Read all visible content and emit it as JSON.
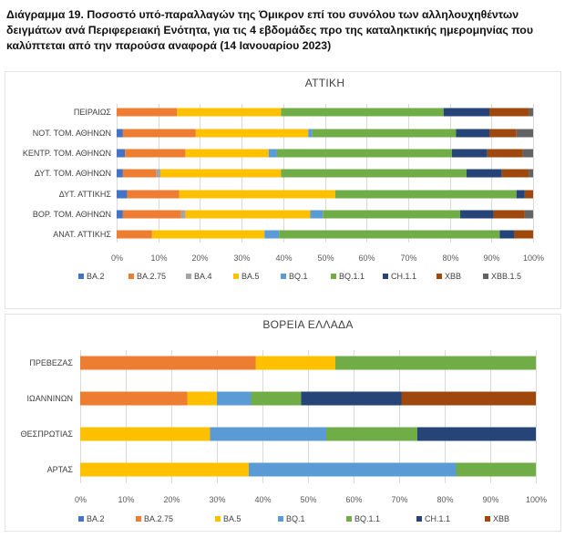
{
  "figure_title": "Διάγραμμα 19. Ποσοστό υπό-παραλλαγών της Όμικρον επί του συνόλου των αλληλουχηθέντων δειγμάτων ανά Περιφερειακή Ενότητα, για τις 4 εβδομάδες προ της καταληκτικής ημερομηνίας που καλύπτεται από την παρούσα αναφορά (14 Ιανουαρίου 2023)",
  "colors": {
    "BA.2": "#4472c4",
    "BA.2.75": "#ed7d31",
    "BA.4": "#a5a5a5",
    "BA.5": "#ffc000",
    "BQ.1": "#5b9bd5",
    "BQ.1.1": "#70ad47",
    "CH.1.1": "#264478",
    "XBB": "#9e480e",
    "XBB.1.5": "#636363"
  },
  "chart_data": [
    {
      "type": "bar",
      "orientation": "horizontal",
      "stacked": "percent",
      "title": "ΑΤΤΙΚΗ",
      "categories": [
        "ΠΕΙΡΑΙΩΣ",
        "ΝΟΤ. ΤΟΜ. ΑΘΗΝΩΝ",
        "ΚΕΝΤΡ. ΤΟΜ. ΑΘΗΝΩΝ",
        "ΔΥΤ. ΤΟΜ. ΑΘΗΝΩΝ",
        "ΔΥΤ. ΑΤΤΙΚΗΣ",
        "ΒΟΡ. ΤΟΜ. ΑΘΗΝΩΝ",
        "ΑΝΑΤ. ΑΤΤΙΚΗΣ"
      ],
      "series": [
        {
          "name": "BA.2",
          "values": [
            0,
            1.5,
            2,
            1.5,
            2.5,
            1.5,
            0
          ]
        },
        {
          "name": "BA.2.75",
          "values": [
            14.5,
            17.5,
            14.5,
            8,
            12.5,
            14,
            8.5
          ]
        },
        {
          "name": "BA.4",
          "values": [
            0,
            0,
            0,
            1,
            0,
            1,
            0
          ]
        },
        {
          "name": "BA.5",
          "values": [
            25,
            27,
            20,
            29,
            37.5,
            30,
            27
          ]
        },
        {
          "name": "BQ.1",
          "values": [
            0,
            1,
            2,
            0,
            0,
            3,
            3.5
          ]
        },
        {
          "name": "BQ.1.1",
          "values": [
            39,
            34.5,
            42,
            44.5,
            43.5,
            33,
            53
          ]
        },
        {
          "name": "CH.1.1",
          "values": [
            11,
            8,
            8.5,
            8.5,
            2,
            8,
            3.5
          ]
        },
        {
          "name": "XBB",
          "values": [
            9.5,
            6.5,
            8.5,
            6.5,
            2,
            7.5,
            4.5
          ]
        },
        {
          "name": "XBB.1.5",
          "values": [
            1,
            4,
            2.5,
            1,
            0,
            2,
            0
          ]
        }
      ],
      "xlim": [
        0,
        100
      ],
      "xticks": [
        "0%",
        "10%",
        "20%",
        "30%",
        "40%",
        "50%",
        "60%",
        "70%",
        "80%",
        "90%",
        "100%"
      ],
      "legend": [
        "BA.2",
        "BA.2.75",
        "BA.4",
        "BA.5",
        "BQ.1",
        "BQ.1.1",
        "CH.1.1",
        "XBB",
        "XBB.1.5"
      ],
      "legend_position": "bottom"
    },
    {
      "type": "bar",
      "orientation": "horizontal",
      "stacked": "percent",
      "title": "ΒΟΡΕΙΑ ΕΛΛΑΔΑ",
      "categories": [
        "ΠΡΕΒΕΖΑΣ",
        "ΙΩΑΝΝΙΝΩΝ",
        "ΘΕΣΠΡΩΤΙΑΣ",
        "ΑΡΤΑΣ"
      ],
      "series": [
        {
          "name": "BA.2",
          "values": [
            0,
            0,
            0,
            0
          ]
        },
        {
          "name": "BA.2.75",
          "values": [
            38.5,
            23.5,
            0,
            0
          ]
        },
        {
          "name": "BA.5",
          "values": [
            17.5,
            6.5,
            28.5,
            37
          ]
        },
        {
          "name": "BQ.1",
          "values": [
            0,
            7.5,
            25.5,
            45.5
          ]
        },
        {
          "name": "BQ.1.1",
          "values": [
            44,
            11,
            20,
            17.5
          ]
        },
        {
          "name": "CH.1.1",
          "values": [
            0,
            22,
            26,
            0
          ]
        },
        {
          "name": "XBB",
          "values": [
            0,
            29.5,
            0,
            0
          ]
        }
      ],
      "xlim": [
        0,
        100
      ],
      "xticks": [
        "0%",
        "10%",
        "20%",
        "30%",
        "40%",
        "50%",
        "60%",
        "70%",
        "80%",
        "90%",
        "100%"
      ],
      "legend": [
        "BA.2",
        "BA.2.75",
        "BA.5",
        "BQ.1",
        "BQ.1.1",
        "CH.1.1",
        "XBB"
      ],
      "legend_position": "bottom"
    }
  ]
}
